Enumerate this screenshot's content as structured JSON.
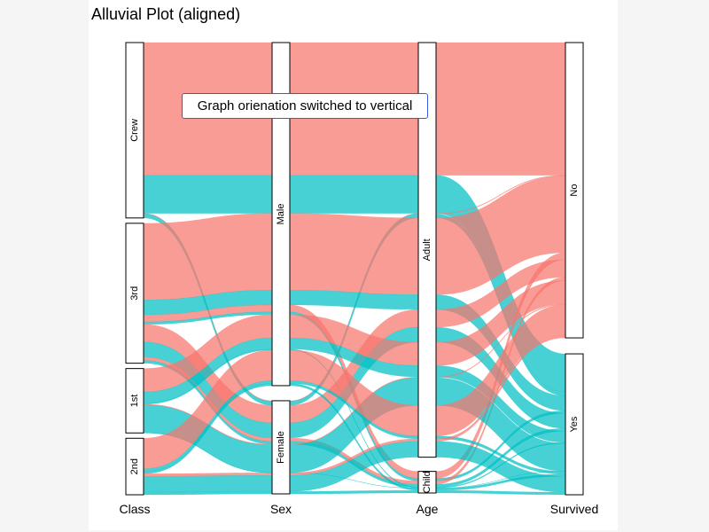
{
  "title": "Alluvial Plot (aligned)",
  "tooltip": "Graph orienation switched to vertical",
  "colors": {
    "no": "#f8766d",
    "yes": "#00bfc4"
  },
  "chart_data": {
    "type": "alluvial",
    "title": "Alluvial Plot (aligned)",
    "axes": [
      "Class",
      "Sex",
      "Age",
      "Survived"
    ],
    "strata": {
      "Class": [
        "Crew",
        "3rd",
        "1st",
        "2nd"
      ],
      "Sex": [
        "Male",
        "Female"
      ],
      "Age": [
        "Adult",
        "Child"
      ],
      "Survived": [
        "No",
        "Yes"
      ]
    },
    "fill_by": "Survived",
    "fill_legend": {
      "No": "#f8766d",
      "Yes": "#00bfc4"
    },
    "flows": [
      {
        "Class": "Crew",
        "Sex": "Male",
        "Age": "Adult",
        "Survived": "No",
        "count": 670
      },
      {
        "Class": "Crew",
        "Sex": "Male",
        "Age": "Adult",
        "Survived": "Yes",
        "count": 192
      },
      {
        "Class": "Crew",
        "Sex": "Female",
        "Age": "Adult",
        "Survived": "No",
        "count": 3
      },
      {
        "Class": "Crew",
        "Sex": "Female",
        "Age": "Adult",
        "Survived": "Yes",
        "count": 20
      },
      {
        "Class": "3rd",
        "Sex": "Male",
        "Age": "Adult",
        "Survived": "No",
        "count": 387
      },
      {
        "Class": "3rd",
        "Sex": "Male",
        "Age": "Adult",
        "Survived": "Yes",
        "count": 75
      },
      {
        "Class": "3rd",
        "Sex": "Male",
        "Age": "Child",
        "Survived": "No",
        "count": 35
      },
      {
        "Class": "3rd",
        "Sex": "Male",
        "Age": "Child",
        "Survived": "Yes",
        "count": 13
      },
      {
        "Class": "3rd",
        "Sex": "Female",
        "Age": "Adult",
        "Survived": "No",
        "count": 89
      },
      {
        "Class": "3rd",
        "Sex": "Female",
        "Age": "Adult",
        "Survived": "Yes",
        "count": 76
      },
      {
        "Class": "3rd",
        "Sex": "Female",
        "Age": "Child",
        "Survived": "No",
        "count": 17
      },
      {
        "Class": "3rd",
        "Sex": "Female",
        "Age": "Child",
        "Survived": "Yes",
        "count": 14
      },
      {
        "Class": "1st",
        "Sex": "Male",
        "Age": "Adult",
        "Survived": "No",
        "count": 118
      },
      {
        "Class": "1st",
        "Sex": "Male",
        "Age": "Adult",
        "Survived": "Yes",
        "count": 57
      },
      {
        "Class": "1st",
        "Sex": "Male",
        "Age": "Child",
        "Survived": "Yes",
        "count": 5
      },
      {
        "Class": "1st",
        "Sex": "Female",
        "Age": "Adult",
        "Survived": "No",
        "count": 4
      },
      {
        "Class": "1st",
        "Sex": "Female",
        "Age": "Adult",
        "Survived": "Yes",
        "count": 140
      },
      {
        "Class": "1st",
        "Sex": "Female",
        "Age": "Child",
        "Survived": "Yes",
        "count": 1
      },
      {
        "Class": "2nd",
        "Sex": "Male",
        "Age": "Adult",
        "Survived": "No",
        "count": 154
      },
      {
        "Class": "2nd",
        "Sex": "Male",
        "Age": "Adult",
        "Survived": "Yes",
        "count": 14
      },
      {
        "Class": "2nd",
        "Sex": "Male",
        "Age": "Child",
        "Survived": "Yes",
        "count": 11
      },
      {
        "Class": "2nd",
        "Sex": "Female",
        "Age": "Adult",
        "Survived": "No",
        "count": 13
      },
      {
        "Class": "2nd",
        "Sex": "Female",
        "Age": "Adult",
        "Survived": "Yes",
        "count": 80
      },
      {
        "Class": "2nd",
        "Sex": "Female",
        "Age": "Child",
        "Survived": "Yes",
        "count": 13
      }
    ]
  }
}
